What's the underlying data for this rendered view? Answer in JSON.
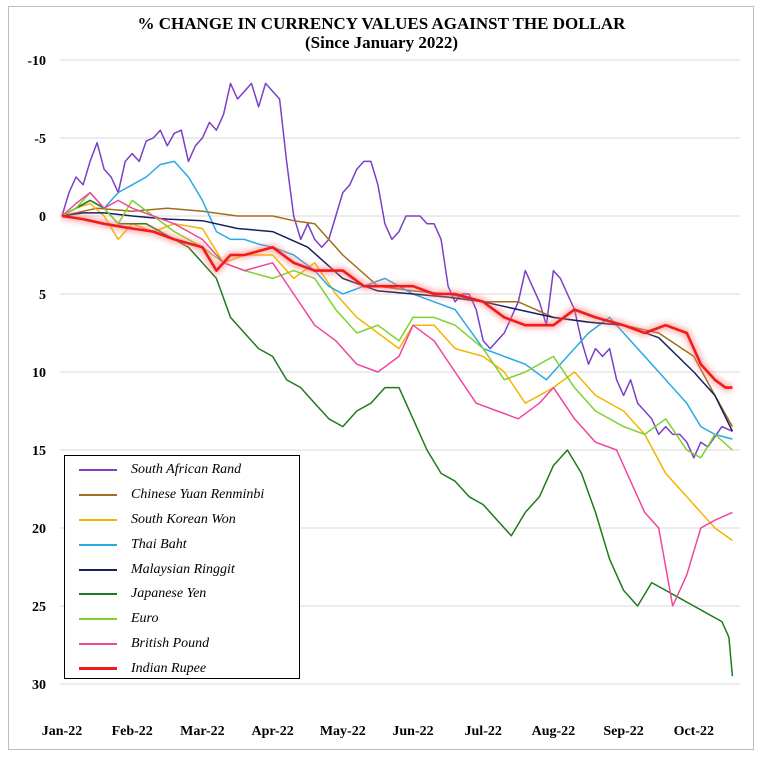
{
  "chart_data": {
    "type": "line",
    "title": "% CHANGE IN CURRENCY VALUES AGAINST THE DOLLAR",
    "subtitle": "(Since January 2022)",
    "x_labels": [
      "Jan-22",
      "Feb-22",
      "Mar-22",
      "Apr-22",
      "May-22",
      "Jun-22",
      "Jul-22",
      "Aug-22",
      "Sep-22",
      "Oct-22"
    ],
    "y_ticks": [
      -10,
      -5,
      0,
      5,
      10,
      15,
      20,
      25,
      30
    ],
    "ylim": [
      -10,
      30
    ],
    "y_inverted": true,
    "legend_position": "bottom-left",
    "grid": "horizontal",
    "series": [
      {
        "name": "South African Rand",
        "color": "#7b3fc9",
        "x": [
          0,
          0.1,
          0.2,
          0.3,
          0.4,
          0.5,
          0.6,
          0.7,
          0.8,
          0.9,
          1.0,
          1.1,
          1.2,
          1.3,
          1.4,
          1.5,
          1.6,
          1.7,
          1.8,
          1.9,
          2.0,
          2.1,
          2.2,
          2.3,
          2.4,
          2.5,
          2.6,
          2.7,
          2.8,
          2.9,
          3.0,
          3.1,
          3.2,
          3.3,
          3.4,
          3.5,
          3.6,
          3.7,
          3.8,
          3.9,
          4.0,
          4.1,
          4.2,
          4.3,
          4.4,
          4.5,
          4.6,
          4.7,
          4.8,
          4.9,
          5.0,
          5.1,
          5.2,
          5.3,
          5.4,
          5.5,
          5.6,
          5.7,
          5.8,
          5.9,
          6.0,
          6.1,
          6.2,
          6.3,
          6.4,
          6.5,
          6.6,
          6.7,
          6.8,
          6.9,
          7.0,
          7.1,
          7.2,
          7.3,
          7.4,
          7.5,
          7.6,
          7.7,
          7.8,
          7.9,
          8.0,
          8.1,
          8.2,
          8.3,
          8.4,
          8.5,
          8.6,
          8.7,
          8.8,
          8.9,
          9.0,
          9.1,
          9.2,
          9.4,
          9.55
        ],
        "y": [
          0,
          -1.5,
          -2.5,
          -2,
          -3.5,
          -4.7,
          -3,
          -2.5,
          -1.5,
          -3.5,
          -4,
          -3.5,
          -4.8,
          -5,
          -5.5,
          -4.5,
          -5.3,
          -5.5,
          -3.5,
          -4.5,
          -5,
          -6,
          -5.5,
          -6.5,
          -8.5,
          -7.5,
          -8,
          -8.5,
          -7,
          -8.5,
          -8,
          -7.5,
          -3.5,
          0,
          1.5,
          0.5,
          1.5,
          2,
          1.5,
          0,
          -1.5,
          -2,
          -3,
          -3.5,
          -3.5,
          -2,
          0.5,
          1.5,
          1,
          0,
          0,
          0,
          0.5,
          0.5,
          1.5,
          4.5,
          5.5,
          5,
          5,
          6,
          8,
          8.5,
          8,
          7.5,
          6.5,
          5.5,
          3.5,
          4.5,
          5.5,
          7,
          3.5,
          4,
          5,
          6,
          8,
          9.5,
          8.5,
          9,
          8.5,
          10.5,
          11.5,
          10.5,
          12,
          12.5,
          13,
          14,
          13.5,
          14,
          14,
          14.5,
          15.5,
          14.5,
          14.8,
          13.5,
          13.8
        ]
      },
      {
        "name": "Chinese Yuan Renminbi",
        "color": "#a36d1a",
        "x": [
          0,
          0.5,
          1,
          1.5,
          2,
          2.5,
          3,
          3.3,
          3.6,
          4,
          4.5,
          5,
          5.5,
          6,
          6.5,
          7,
          7.5,
          8,
          8.5,
          9,
          9.3,
          9.55
        ],
        "y": [
          0,
          -0.5,
          -0.3,
          -0.5,
          -0.3,
          0,
          0,
          0.3,
          0.5,
          2.5,
          4.5,
          4.8,
          5,
          5.5,
          5.5,
          6.5,
          6.8,
          7,
          7.5,
          9,
          11.5,
          13.5
        ]
      },
      {
        "name": "South Korean Won",
        "color": "#f5b400",
        "x": [
          0,
          0.2,
          0.4,
          0.6,
          0.8,
          1,
          1.3,
          1.6,
          2,
          2.3,
          2.6,
          3,
          3.3,
          3.6,
          3.9,
          4.2,
          4.5,
          4.8,
          5,
          5.3,
          5.6,
          6,
          6.3,
          6.6,
          7,
          7.3,
          7.6,
          8,
          8.3,
          8.6,
          8.9,
          9.1,
          9.3,
          9.55
        ],
        "y": [
          0,
          -0.5,
          -0.8,
          0,
          1.5,
          0.5,
          1,
          0.5,
          0.8,
          3,
          2.5,
          2.5,
          4,
          3,
          5,
          6.5,
          7.5,
          8.5,
          7,
          7,
          8.5,
          9,
          10,
          12,
          11,
          10,
          11.5,
          12.5,
          14,
          16.5,
          18,
          19,
          20,
          20.8
        ]
      },
      {
        "name": "Thai Baht",
        "color": "#29a8e6",
        "x": [
          0,
          0.2,
          0.4,
          0.6,
          0.8,
          1,
          1.2,
          1.4,
          1.6,
          1.8,
          2,
          2.2,
          2.4,
          2.6,
          2.8,
          3,
          3.3,
          3.6,
          3.8,
          4,
          4.3,
          4.6,
          4.8,
          5,
          5.3,
          5.6,
          6,
          6.3,
          6.6,
          6.9,
          7.2,
          7.5,
          7.8,
          8,
          8.3,
          8.6,
          8.9,
          9.1,
          9.3,
          9.55
        ],
        "y": [
          0,
          -0.5,
          -1,
          -0.5,
          -1.5,
          -2,
          -2.5,
          -3.3,
          -3.5,
          -2.5,
          -1,
          1,
          1.5,
          1.5,
          1.8,
          2,
          2.5,
          3.5,
          4.5,
          5,
          4.5,
          4,
          4.5,
          5,
          5.5,
          6,
          8.5,
          9,
          9.5,
          10.5,
          9,
          7.5,
          6.5,
          7.5,
          9,
          10.5,
          12,
          13.5,
          14,
          14.3
        ]
      },
      {
        "name": "Malaysian Ringgit",
        "color": "#16215e",
        "x": [
          0,
          0.3,
          0.6,
          1,
          1.5,
          2,
          2.5,
          3,
          3.5,
          4,
          4.5,
          5,
          5.5,
          6,
          6.5,
          7,
          7.5,
          8,
          8.5,
          9,
          9.3,
          9.55
        ],
        "y": [
          0,
          -0.2,
          -0.2,
          0,
          0.2,
          0.3,
          0.8,
          1,
          2,
          4,
          4.8,
          5,
          5.2,
          5.5,
          6,
          6.5,
          6.8,
          7,
          7.8,
          10,
          11.5,
          13.8
        ]
      },
      {
        "name": "Japanese Yen",
        "color": "#1f7a1f",
        "x": [
          0,
          0.2,
          0.4,
          0.6,
          0.8,
          1,
          1.2,
          1.4,
          1.6,
          1.8,
          2,
          2.2,
          2.4,
          2.6,
          2.8,
          3,
          3.2,
          3.4,
          3.6,
          3.8,
          4,
          4.2,
          4.4,
          4.6,
          4.8,
          5,
          5.2,
          5.4,
          5.6,
          5.8,
          6,
          6.2,
          6.4,
          6.6,
          6.8,
          7,
          7.2,
          7.4,
          7.6,
          7.8,
          8,
          8.2,
          8.4,
          8.6,
          8.8,
          9,
          9.2,
          9.4,
          9.5,
          9.55
        ],
        "y": [
          0,
          -0.5,
          -1,
          -0.5,
          0.5,
          0.5,
          0.5,
          1,
          1.5,
          2,
          3,
          4,
          6.5,
          7.5,
          8.5,
          9,
          10.5,
          11,
          12,
          13,
          13.5,
          12.5,
          12,
          11,
          11,
          13,
          15,
          16.5,
          17,
          18,
          18.5,
          19.5,
          20.5,
          19,
          18,
          16,
          15,
          16.5,
          19,
          22,
          24,
          25,
          23.5,
          24,
          24.5,
          25,
          25.5,
          26,
          27,
          29.5
        ]
      },
      {
        "name": "Euro",
        "color": "#7fd12e",
        "x": [
          0,
          0.2,
          0.4,
          0.6,
          0.8,
          1,
          1.3,
          1.6,
          2,
          2.3,
          2.6,
          3,
          3.3,
          3.6,
          3.9,
          4.2,
          4.5,
          4.8,
          5,
          5.3,
          5.6,
          6,
          6.3,
          6.6,
          7,
          7.3,
          7.6,
          8,
          8.3,
          8.6,
          8.9,
          9.1,
          9.3,
          9.55
        ],
        "y": [
          0,
          -0.5,
          -1.5,
          -0.5,
          0.5,
          -1,
          0,
          1,
          2,
          3,
          3.5,
          4,
          3.5,
          4,
          6,
          7.5,
          7,
          8,
          6.5,
          6.5,
          7,
          8.5,
          10.5,
          10,
          9,
          11,
          12.5,
          13.5,
          14,
          13,
          15,
          15.5,
          14,
          15
        ]
      },
      {
        "name": "British Pound",
        "color": "#f0459f",
        "x": [
          0,
          0.2,
          0.4,
          0.6,
          0.8,
          1,
          1.3,
          1.6,
          2,
          2.3,
          2.6,
          3,
          3.3,
          3.6,
          3.9,
          4.2,
          4.5,
          4.8,
          5,
          5.3,
          5.6,
          5.9,
          6.2,
          6.5,
          6.8,
          7,
          7.3,
          7.6,
          7.9,
          8.1,
          8.3,
          8.5,
          8.7,
          8.9,
          9.1,
          9.3,
          9.55
        ],
        "y": [
          0,
          -0.8,
          -1.5,
          -0.5,
          -1,
          -0.5,
          0,
          0.5,
          1.5,
          3,
          3.5,
          3,
          5,
          7,
          8,
          9.5,
          10,
          9,
          7,
          8,
          10,
          12,
          12.5,
          13,
          12,
          11,
          13,
          14.5,
          15,
          17,
          19,
          20,
          25,
          23,
          20,
          19.5,
          19
        ]
      },
      {
        "name": "Indian Rupee",
        "color": "#ee1c1c",
        "x": [
          0,
          0.3,
          0.6,
          1,
          1.3,
          1.6,
          2,
          2.2,
          2.4,
          2.6,
          3,
          3.3,
          3.6,
          4,
          4.3,
          4.6,
          5,
          5.3,
          5.6,
          6,
          6.3,
          6.6,
          7,
          7.3,
          7.6,
          8,
          8.3,
          8.6,
          8.9,
          9.1,
          9.3,
          9.45,
          9.55
        ],
        "y": [
          0,
          0.2,
          0.5,
          0.8,
          1,
          1.5,
          2,
          3.5,
          2.5,
          2.5,
          2,
          3,
          3.5,
          3.5,
          4.5,
          4.5,
          4.5,
          5,
          5,
          5.5,
          6.5,
          7,
          7,
          6,
          6.5,
          7,
          7.5,
          7,
          7.5,
          9.5,
          10.5,
          11,
          11
        ]
      }
    ]
  }
}
